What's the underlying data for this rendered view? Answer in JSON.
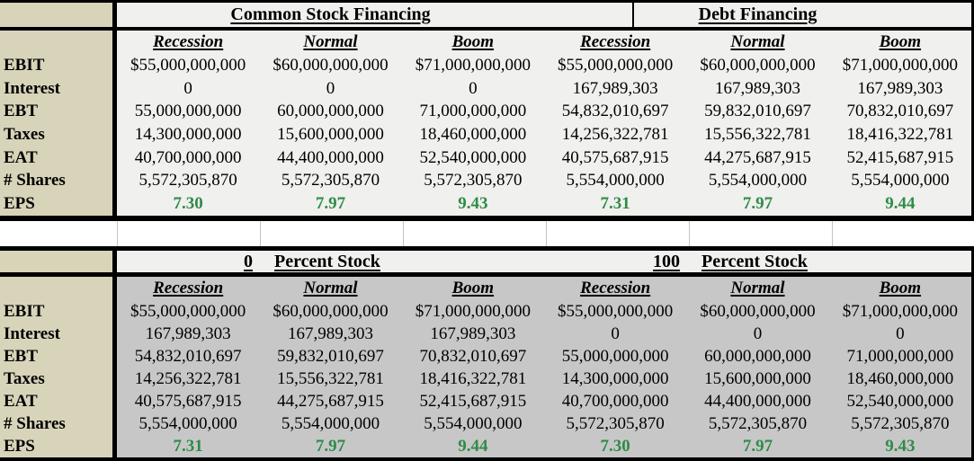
{
  "colors": {
    "label_bg": "#d8d4ba",
    "top_body_bg": "#f0f0ee",
    "bottom_body_bg": "#c7c7c7",
    "header_band_bg": "#f0f0ee",
    "eps_green": "#2f8b48",
    "border": "#000000",
    "gap_gridline": "#c4c4c4"
  },
  "scenarios": [
    "Recession",
    "Normal",
    "Boom"
  ],
  "tables": [
    {
      "groups": [
        {
          "title": "Common Stock Financing"
        },
        {
          "title": "Debt Financing"
        }
      ],
      "rows": [
        {
          "label": "EBIT",
          "values": [
            "$55,000,000,000",
            "$60,000,000,000",
            "$71,000,000,000",
            "$55,000,000,000",
            "$60,000,000,000",
            "$71,000,000,000"
          ]
        },
        {
          "label": "Interest",
          "values": [
            "0",
            "0",
            "0",
            "167,989,303",
            "167,989,303",
            "167,989,303"
          ]
        },
        {
          "label": "EBT",
          "values": [
            "55,000,000,000",
            "60,000,000,000",
            "71,000,000,000",
            "54,832,010,697",
            "59,832,010,697",
            "70,832,010,697"
          ]
        },
        {
          "label": "Taxes",
          "values": [
            "14,300,000,000",
            "15,600,000,000",
            "18,460,000,000",
            "14,256,322,781",
            "15,556,322,781",
            "18,416,322,781"
          ]
        },
        {
          "label": "EAT",
          "values": [
            "40,700,000,000",
            "44,400,000,000",
            "52,540,000,000",
            "40,575,687,915",
            "44,275,687,915",
            "52,415,687,915"
          ]
        },
        {
          "label": "# Shares",
          "values": [
            "5,572,305,870",
            "5,572,305,870",
            "5,572,305,870",
            "5,554,000,000",
            "5,554,000,000",
            "5,554,000,000"
          ]
        },
        {
          "label": "EPS",
          "values": [
            "7.30",
            "7.97",
            "9.43",
            "7.31",
            "7.97",
            "9.44"
          ],
          "highlight": true
        }
      ]
    },
    {
      "groups": [
        {
          "value": "0",
          "title": "Percent Stock"
        },
        {
          "value": "100",
          "title": "Percent Stock"
        }
      ],
      "rows": [
        {
          "label": "EBIT",
          "values": [
            "$55,000,000,000",
            "$60,000,000,000",
            "$71,000,000,000",
            "$55,000,000,000",
            "$60,000,000,000",
            "$71,000,000,000"
          ]
        },
        {
          "label": "Interest",
          "values": [
            "167,989,303",
            "167,989,303",
            "167,989,303",
            "0",
            "0",
            "0"
          ]
        },
        {
          "label": "EBT",
          "values": [
            "54,832,010,697",
            "59,832,010,697",
            "70,832,010,697",
            "55,000,000,000",
            "60,000,000,000",
            "71,000,000,000"
          ]
        },
        {
          "label": "Taxes",
          "values": [
            "14,256,322,781",
            "15,556,322,781",
            "18,416,322,781",
            "14,300,000,000",
            "15,600,000,000",
            "18,460,000,000"
          ]
        },
        {
          "label": "EAT",
          "values": [
            "40,575,687,915",
            "44,275,687,915",
            "52,415,687,915",
            "40,700,000,000",
            "44,400,000,000",
            "52,540,000,000"
          ]
        },
        {
          "label": "# Shares",
          "values": [
            "5,554,000,000",
            "5,554,000,000",
            "5,554,000,000",
            "5,572,305,870",
            "5,572,305,870",
            "5,572,305,870"
          ]
        },
        {
          "label": "EPS",
          "values": [
            "7.31",
            "7.97",
            "9.44",
            "7.30",
            "7.97",
            "9.43"
          ],
          "highlight": true
        }
      ]
    }
  ]
}
